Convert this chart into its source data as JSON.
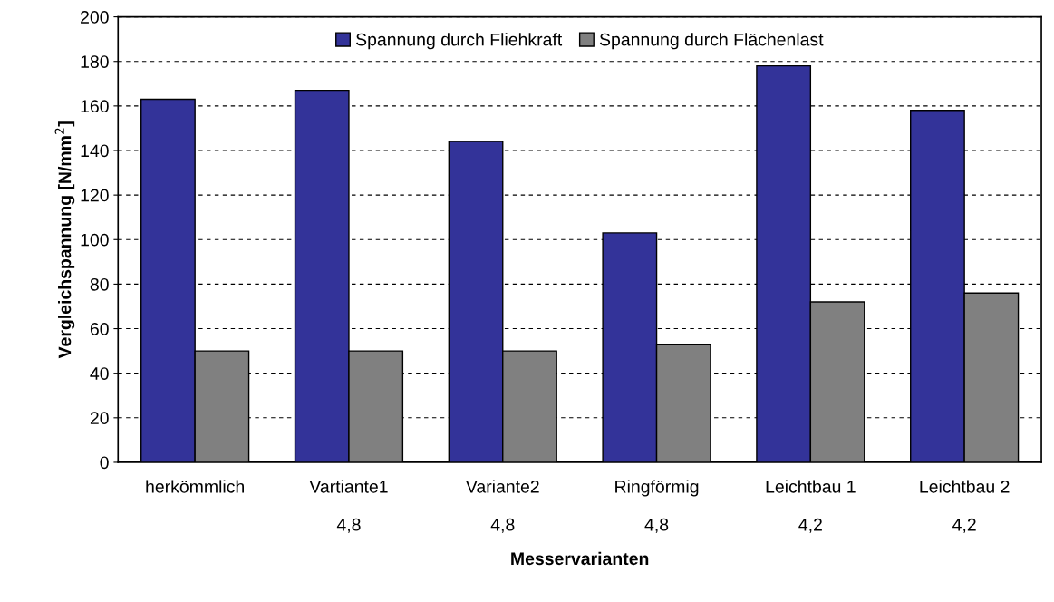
{
  "chart_data": {
    "type": "bar",
    "xlabel": "Messervarianten",
    "ylabel": "Vergleichspannung [N/mm$^{2}$]",
    "categories": [
      "herkömmlich",
      "Vartiante1\n\n4,8",
      "Variante2\n\n4,8",
      "Ringförmig\n\n4,8",
      "Leichtbau 1\n\n4,2",
      "Leichtbau 2\n\n4,2"
    ],
    "series": [
      {
        "name": "Spannung durch Fliehkraft",
        "color": "#333399",
        "values": [
          163,
          167,
          144,
          103,
          178,
          158
        ]
      },
      {
        "name": "Spannung durch Flächenlast",
        "color": "#808080",
        "values": [
          50,
          50,
          50,
          53,
          72,
          76
        ]
      }
    ],
    "ylim": [
      0,
      200
    ],
    "yticks": [
      0,
      20,
      40,
      60,
      80,
      100,
      120,
      140,
      160,
      180,
      200
    ],
    "grid": "y",
    "legend": "top"
  }
}
